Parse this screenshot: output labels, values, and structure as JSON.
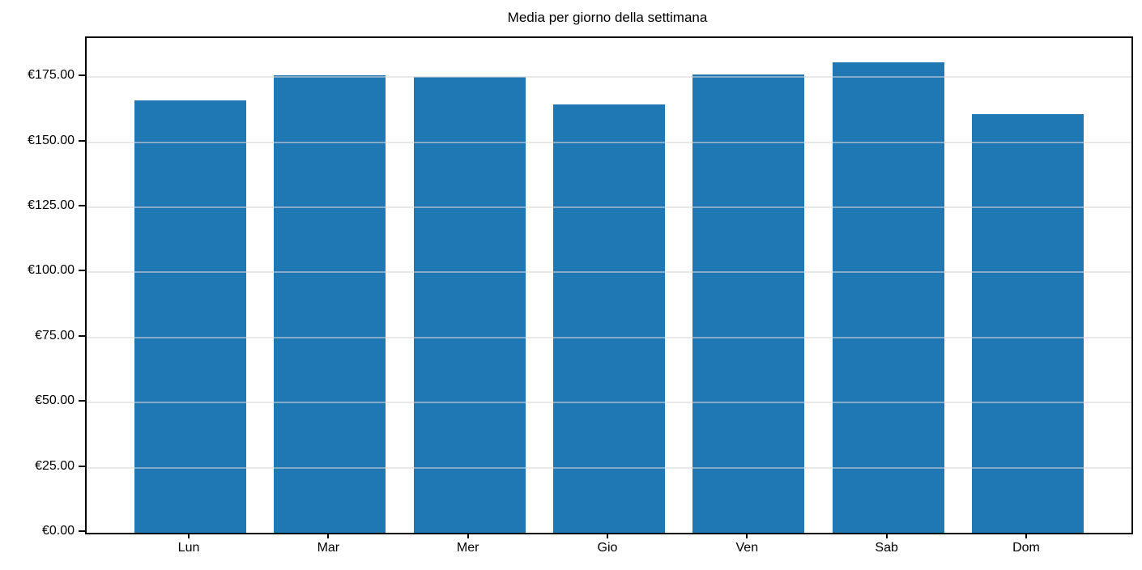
{
  "chart_data": {
    "type": "bar",
    "title": "Media per giorno della settimana",
    "categories": [
      "Lun",
      "Mar",
      "Mer",
      "Gio",
      "Ven",
      "Sab",
      "Dom"
    ],
    "values": [
      166.1,
      175.7,
      175.2,
      164.6,
      175.9,
      180.7,
      160.9
    ],
    "xlabel": "",
    "ylabel": "",
    "ylim": [
      0,
      190
    ],
    "ytick_step": 25,
    "ytick_labels": [
      "€0.00",
      "€25.00",
      "€50.00",
      "€75.00",
      "€100.00",
      "€125.00",
      "€150.00",
      "€175.00"
    ],
    "currency_prefix": "€",
    "bar_color": "#1f77b4",
    "grid": true,
    "grid_color": "#e6e6e6",
    "legend": "none"
  }
}
